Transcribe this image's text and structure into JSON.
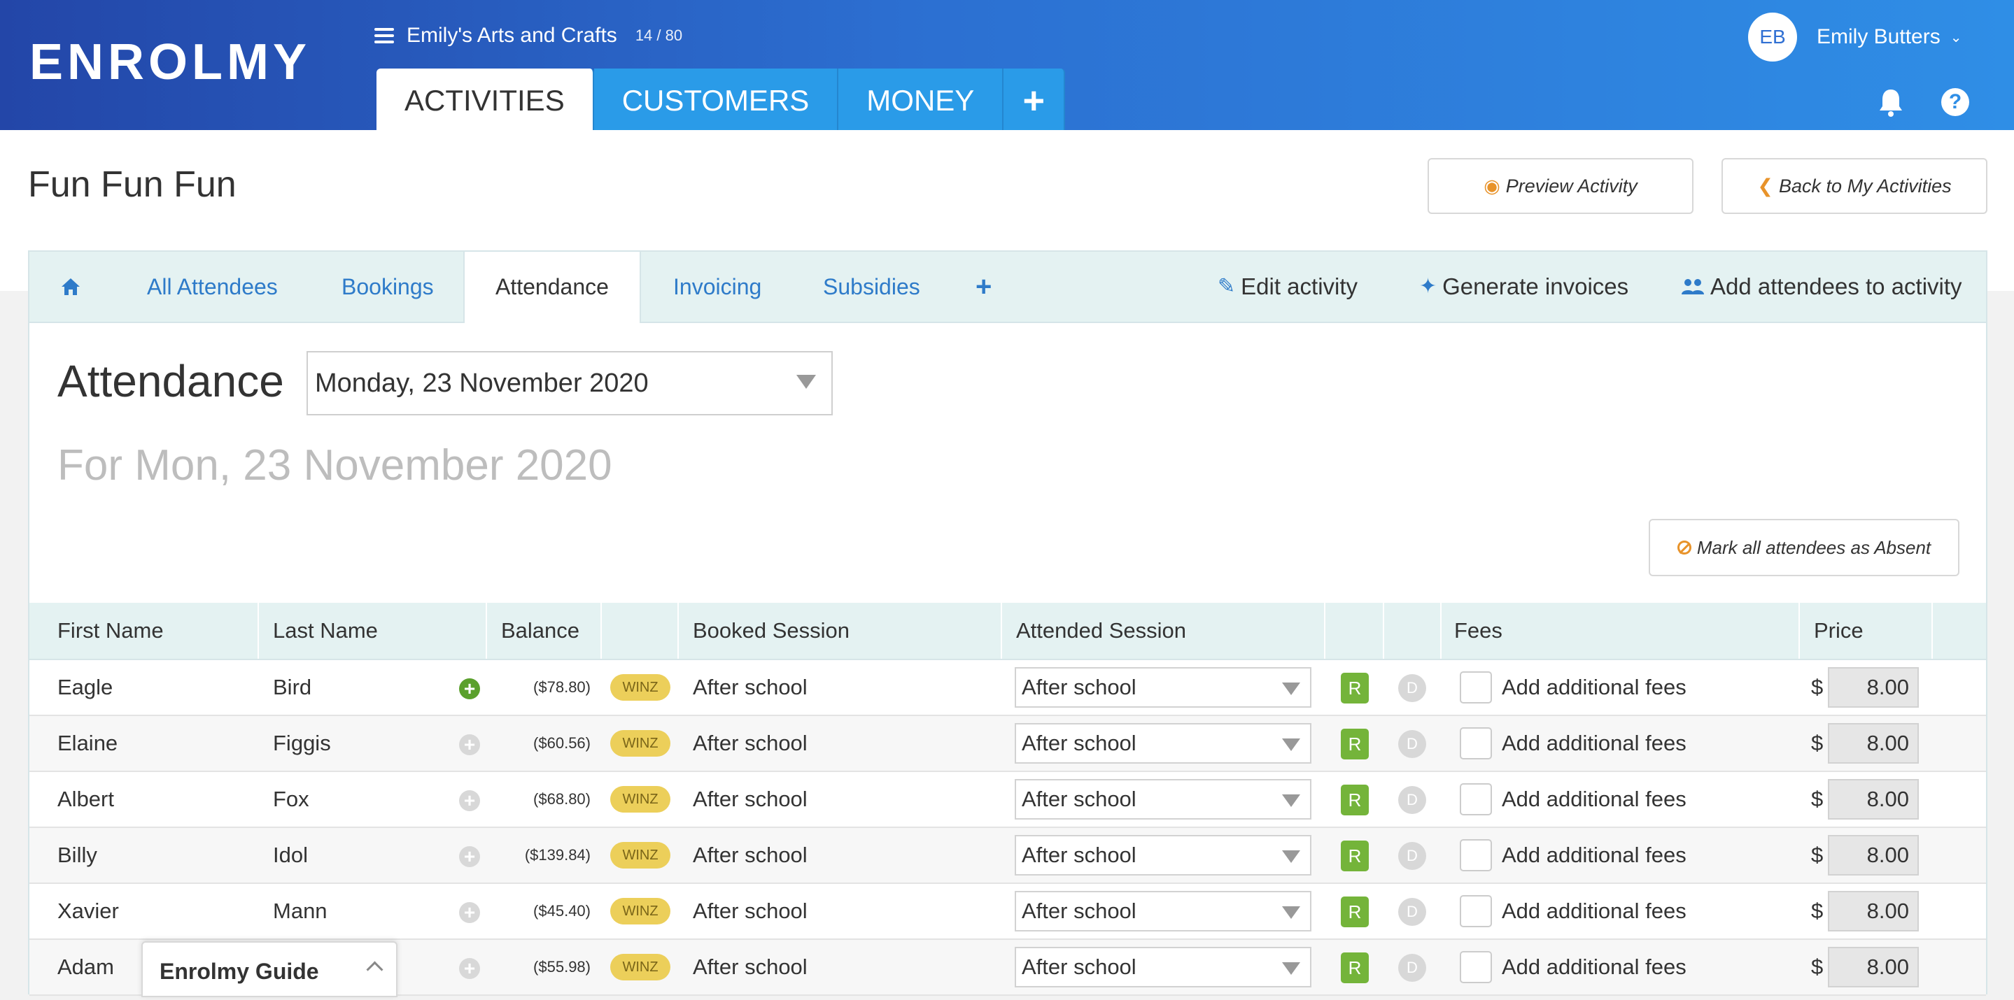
{
  "header": {
    "logo": "ENROLMY",
    "org_name": "Emily's Arts and Crafts",
    "org_count": "14 / 80",
    "tabs": [
      {
        "label": "ACTIVITIES",
        "active": true
      },
      {
        "label": "CUSTOMERS",
        "active": false
      },
      {
        "label": "MONEY",
        "active": false
      },
      {
        "label": "+",
        "active": false
      }
    ],
    "user": {
      "initials": "EB",
      "name": "Emily Butters"
    }
  },
  "page": {
    "title": "Fun Fun Fun",
    "preview_button": "Preview Activity",
    "back_button": "Back to My Activities"
  },
  "subnav": {
    "tabs": [
      "All Attendees",
      "Bookings",
      "Attendance",
      "Invoicing",
      "Subsidies"
    ],
    "active_tab": "Attendance",
    "actions": [
      "Edit activity",
      "Generate invoices",
      "Add attendees to activity"
    ]
  },
  "attendance": {
    "heading": "Attendance",
    "date_selected": "Monday, 23 November 2020",
    "for_date": "For Mon, 23 November 2020",
    "mark_absent_button": "Mark all attendees as Absent"
  },
  "table": {
    "columns": [
      "First Name",
      "Last Name",
      "Balance",
      "Booked Session",
      "Attended Session",
      "Fees",
      "Price"
    ],
    "rows": [
      {
        "first": "Eagle",
        "last": "Bird",
        "balance": "($78.80)",
        "tag": "WINZ",
        "booked": "After school",
        "attended": "After school",
        "r": "R",
        "d": "D",
        "fees": "Add additional fees",
        "currency": "$",
        "price": "8.00",
        "plus_active": true
      },
      {
        "first": "Elaine",
        "last": "Figgis",
        "balance": "($60.56)",
        "tag": "WINZ",
        "booked": "After school",
        "attended": "After school",
        "r": "R",
        "d": "D",
        "fees": "Add additional fees",
        "currency": "$",
        "price": "8.00",
        "plus_active": false
      },
      {
        "first": "Albert",
        "last": "Fox",
        "balance": "($68.80)",
        "tag": "WINZ",
        "booked": "After school",
        "attended": "After school",
        "r": "R",
        "d": "D",
        "fees": "Add additional fees",
        "currency": "$",
        "price": "8.00",
        "plus_active": false
      },
      {
        "first": "Billy",
        "last": "Idol",
        "balance": "($139.84)",
        "tag": "WINZ",
        "booked": "After school",
        "attended": "After school",
        "r": "R",
        "d": "D",
        "fees": "Add additional fees",
        "currency": "$",
        "price": "8.00",
        "plus_active": false
      },
      {
        "first": "Xavier",
        "last": "Mann",
        "balance": "($45.40)",
        "tag": "WINZ",
        "booked": "After school",
        "attended": "After school",
        "r": "R",
        "d": "D",
        "fees": "Add additional fees",
        "currency": "$",
        "price": "8.00",
        "plus_active": false
      },
      {
        "first": "Adam",
        "last": "",
        "balance": "($55.98)",
        "tag": "WINZ",
        "booked": "After school",
        "attended": "After school",
        "r": "R",
        "d": "D",
        "fees": "Add additional fees",
        "currency": "$",
        "price": "8.00",
        "plus_active": false
      }
    ]
  },
  "guide": {
    "label": "Enrolmy Guide"
  },
  "colors": {
    "accent": "#2e7bc9",
    "header_start": "#2346a8",
    "header_end": "#2f8ee6",
    "green": "#74b43a",
    "winz": "#eccf5a",
    "orange": "#e8932a"
  },
  "icons": [
    "hamburger-icon",
    "plus-icon",
    "bell-icon",
    "help-icon",
    "eye-icon",
    "chevron-left-icon",
    "home-icon",
    "pencil-icon",
    "magic-wand-icon",
    "users-icon",
    "ban-icon",
    "chevron-down-icon",
    "chevron-up-icon"
  ]
}
